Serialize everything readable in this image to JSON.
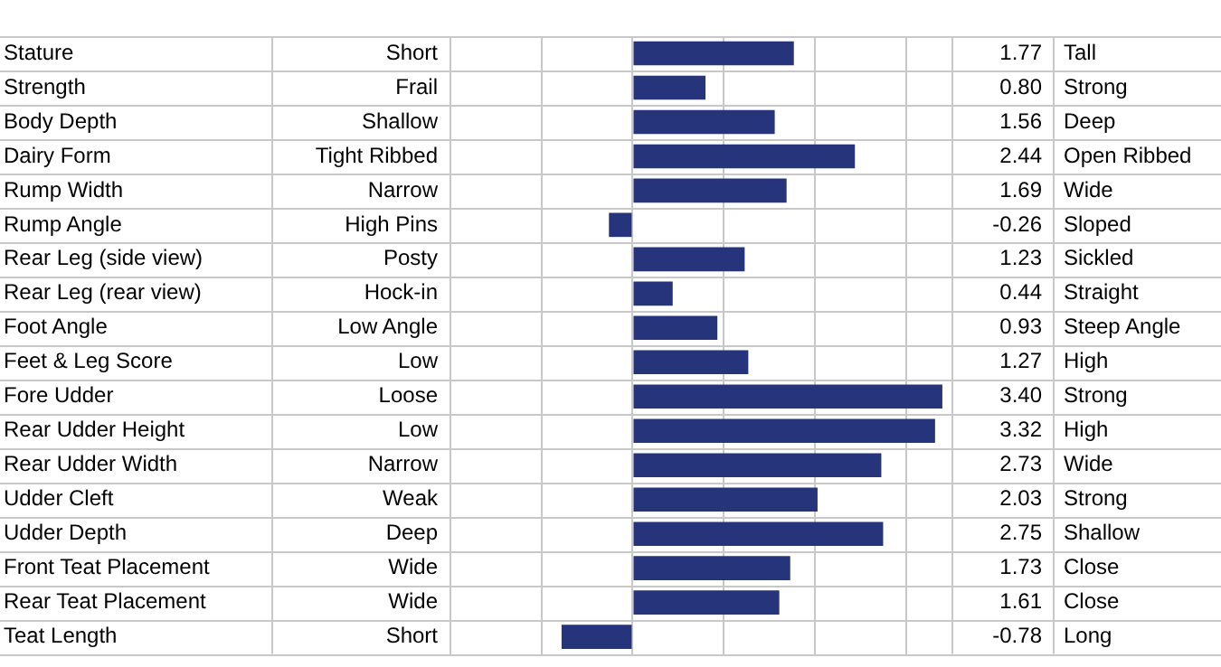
{
  "chart_data": {
    "type": "bar",
    "orientation": "horizontal",
    "categories": [
      "Stature",
      "Strength",
      "Body Depth",
      "Dairy Form",
      "Rump Width",
      "Rump Angle",
      "Rear Leg (side view)",
      "Rear Leg (rear view)",
      "Foot Angle",
      "Feet & Leg Score",
      "Fore Udder",
      "Rear Udder Height",
      "Rear Udder Width",
      "Udder Cleft",
      "Udder Depth",
      "Front Teat Placement",
      "Rear Teat Placement",
      "Teat Length"
    ],
    "values": [
      1.77,
      0.8,
      1.56,
      2.44,
      1.69,
      -0.26,
      1.23,
      0.44,
      0.93,
      1.27,
      3.4,
      3.32,
      2.73,
      2.03,
      2.75,
      1.73,
      1.61,
      -0.78
    ],
    "value_labels": [
      "1.77",
      "0.80",
      "1.56",
      "2.44",
      "1.69",
      "-0.26",
      "1.23",
      "0.44",
      "0.93",
      "1.27",
      "3.40",
      "3.32",
      "2.73",
      "2.03",
      "2.75",
      "1.73",
      "1.61",
      "-0.78"
    ],
    "color": "#26347c",
    "xlim": [
      -2,
      3.5
    ],
    "xticks": [
      {
        "value": -2,
        "label": null
      },
      {
        "value": -1,
        "label": null
      },
      {
        "value": 0,
        "label": null
      },
      {
        "value": 1,
        "label": null
      },
      {
        "value": 2,
        "label": null
      },
      {
        "value": 3,
        "label": null
      }
    ],
    "tick_labels": "y",
    "grid": true,
    "legend": false,
    "annotations": [
      "Short",
      "Tall",
      "Frail",
      "Strong",
      "Shallow",
      "Deep",
      "Tight Ribbed",
      "Open Ribbed",
      "Narrow",
      "Wide",
      "High Pins",
      "Sloped",
      "Posty",
      "Sickled",
      "Hock-in",
      "Straight",
      "Low Angle",
      "Steep Angle",
      "Low",
      "High",
      "Loose",
      "Strong",
      "Low",
      "High",
      "Narrow",
      "Wide",
      "Weak",
      "Strong",
      "Deep",
      "Shallow",
      "Wide",
      "Close",
      "Wide",
      "Close",
      "Short",
      "Long"
    ]
  }
}
